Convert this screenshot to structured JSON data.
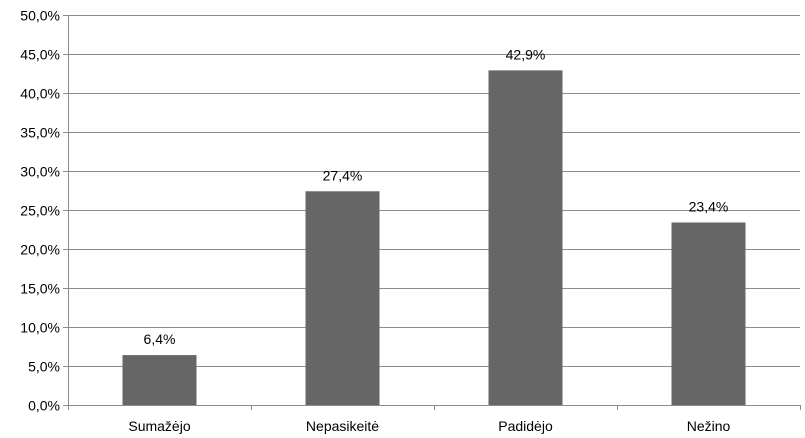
{
  "chart_data": {
    "type": "bar",
    "title": "",
    "xlabel": "",
    "ylabel": "",
    "categories": [
      "Sumažėjo",
      "Nepasikeitė",
      "Padidėjo",
      "Nežino"
    ],
    "values": [
      6.4,
      27.4,
      42.9,
      23.4
    ],
    "data_labels": [
      "6,4%",
      "27,4%",
      "42,9%",
      "23,4%"
    ],
    "ylim": [
      0,
      50
    ],
    "yticks": [
      0,
      5,
      10,
      15,
      20,
      25,
      30,
      35,
      40,
      45,
      50
    ],
    "ytick_labels": [
      "0,0%",
      "5,0%",
      "10,0%",
      "15,0%",
      "20,0%",
      "25,0%",
      "30,0%",
      "35,0%",
      "40,0%",
      "45,0%",
      "50,0%"
    ],
    "grid": true,
    "legend": "none",
    "colors": {
      "bar": "#666666",
      "grid": "#8c8c8c"
    }
  }
}
